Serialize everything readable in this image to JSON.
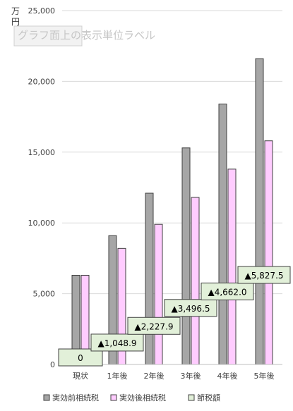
{
  "chart_data": {
    "type": "bar",
    "unit_label": "万円",
    "overlay_label": "グラフ面上の表示単位ラベル",
    "categories": [
      "現状",
      "1年後",
      "2年後",
      "3年後",
      "4年後",
      "5年後"
    ],
    "ylim": [
      0,
      25000
    ],
    "yticks": [
      0,
      5000,
      10000,
      15000,
      20000,
      25000
    ],
    "ytick_labels": [
      "0",
      "5,000",
      "10,000",
      "15,000",
      "20,000",
      "25,000"
    ],
    "grid": true,
    "legend_position": "bottom",
    "series": [
      {
        "name": "実効前相続税",
        "color": "#a6a6a6",
        "values": [
          6300,
          9100,
          12100,
          15300,
          18400,
          21600
        ]
      },
      {
        "name": "実効後相続税",
        "color": "#ffccff",
        "values": [
          6300,
          8200,
          9900,
          11800,
          13800,
          15800
        ]
      },
      {
        "name": "節税額",
        "color": "#e2f0d9",
        "values": [
          0,
          1048.9,
          2227.9,
          3496.5,
          4662.0,
          5827.5
        ],
        "labels": [
          "0",
          "▲1,048.9",
          "▲2,227.9",
          "▲3,496.5",
          "▲4,662.0",
          "▲5,827.5"
        ]
      }
    ]
  }
}
